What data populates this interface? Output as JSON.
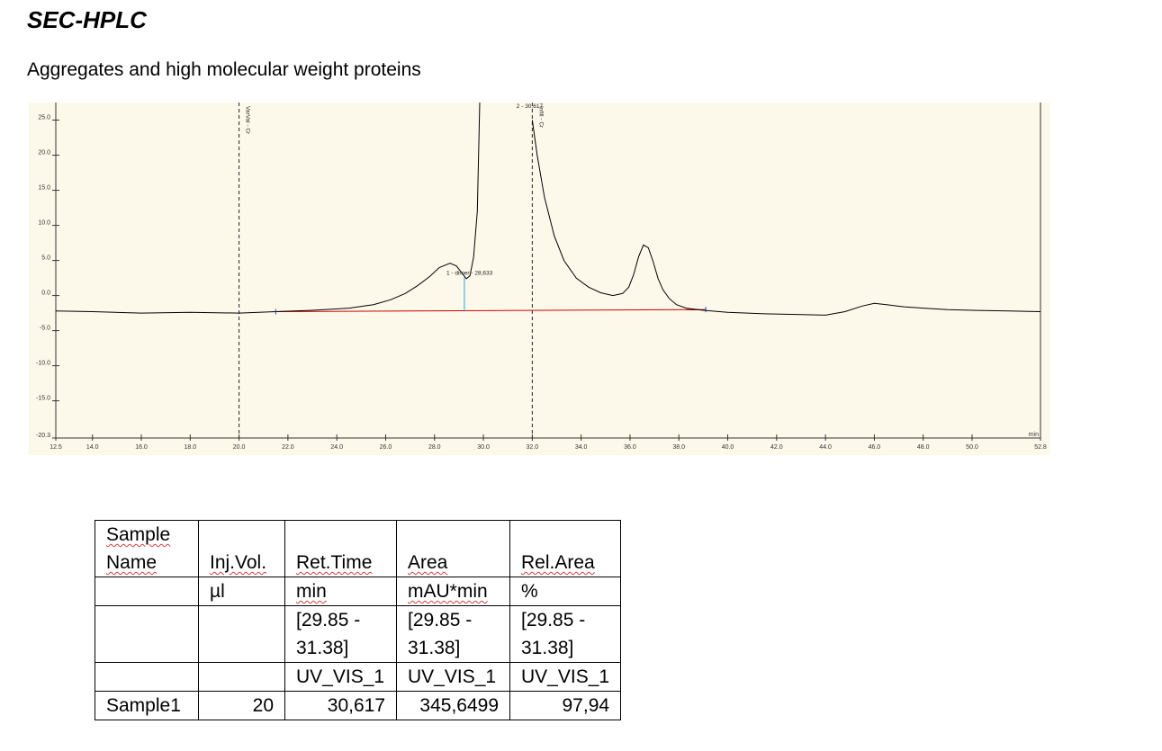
{
  "document": {
    "title": "SEC-HPLC",
    "subtitle": "Aggregates and high molecular weight proteins"
  },
  "chromatogram": {
    "x_unit": "min",
    "y_ticks": [
      "25.0",
      "20.0",
      "15.0",
      "10.0",
      "5.0",
      "0.0",
      "-5.0",
      "-10.0",
      "-15.0",
      "-20.3"
    ],
    "x_ticks": [
      "12.5",
      "14.0",
      "16.0",
      "18.0",
      "20.0",
      "22.0",
      "24.0",
      "26.0",
      "28.0",
      "30.0",
      "32.0",
      "34.0",
      "36.0",
      "38.0",
      "40.0",
      "42.0",
      "44.0",
      "46.0",
      "48.0",
      "50.0",
      "52.8"
    ],
    "markers": [
      {
        "time": 20.0,
        "label": "VarVal - Cr"
      },
      {
        "time": 32.0,
        "label": "Infill - Cr"
      }
    ],
    "peak_labels": {
      "dimer": "1 - dimer - 28,633",
      "main": "2 - 30,617"
    },
    "colors": {
      "background": "#fdf9ea",
      "trace": "#000000",
      "baseline": "#cc0000",
      "peak_marker": "#22aadd"
    }
  },
  "chart_data": {
    "type": "line",
    "title": "",
    "xlabel": "min",
    "ylabel": "",
    "xlim": [
      12.5,
      52.8
    ],
    "ylim": [
      -20.3,
      27.5
    ],
    "series": [
      {
        "x": [
          12.5,
          14.0,
          16.0,
          18.0,
          20.0,
          21.5,
          23.0,
          24.5,
          25.5,
          26.2,
          26.8,
          27.3,
          27.8,
          28.2,
          28.633,
          28.9,
          29.1,
          29.3,
          29.45,
          29.6,
          29.75,
          29.85
        ],
        "y": [
          -2.2,
          -2.3,
          -2.5,
          -2.4,
          -2.5,
          -2.3,
          -2.1,
          -1.8,
          -1.3,
          -0.6,
          0.3,
          1.4,
          2.7,
          4.0,
          4.6,
          4.2,
          3.3,
          2.4,
          2.8,
          5.5,
          12.0,
          27.5
        ]
      },
      {
        "x": [
          32.0,
          32.2,
          32.5,
          32.9,
          33.3,
          33.8,
          34.3,
          34.8,
          35.3,
          35.7,
          35.95,
          36.15,
          36.35,
          36.55,
          36.75,
          36.95,
          37.15,
          37.35,
          37.6,
          37.9,
          38.3,
          39.0,
          40.0,
          41.5,
          43.0,
          44.0,
          44.8,
          45.5,
          46.0,
          46.5,
          47.2,
          48.0,
          49.0,
          50.0,
          51.5,
          52.8
        ],
        "y": [
          25.0,
          20.0,
          14.0,
          8.5,
          5.0,
          2.5,
          1.2,
          0.4,
          0.0,
          0.3,
          1.2,
          3.0,
          5.5,
          7.2,
          6.8,
          4.8,
          2.4,
          0.8,
          -0.4,
          -1.3,
          -1.8,
          -2.1,
          -2.4,
          -2.6,
          -2.7,
          -2.8,
          -2.3,
          -1.5,
          -1.1,
          -1.3,
          -1.6,
          -1.8,
          -2.0,
          -2.1,
          -2.2,
          -2.3
        ]
      }
    ],
    "baseline": {
      "x": [
        21.5,
        39.1
      ],
      "y": [
        -2.3,
        -2.0
      ]
    },
    "peaks": [
      {
        "name": "dimer",
        "time": 28.633
      },
      {
        "name": "main",
        "time": 30.617
      }
    ]
  },
  "table": {
    "rows": [
      [
        "Sample Name",
        "Inj.Vol.",
        "Ret.Time",
        "Area",
        "Rel.Area"
      ],
      [
        "",
        "µl",
        "min",
        "mAU*min",
        "%"
      ],
      [
        "",
        "",
        "[29.85 - 31.38]",
        "[29.85 - 31.38]",
        "[29.85 - 31.38]"
      ],
      [
        "",
        "",
        "UV_VIS_1",
        "UV_VIS_1",
        "UV_VIS_1"
      ],
      [
        "Sample1",
        "20",
        "30,617",
        "345,6499",
        "97,94"
      ]
    ]
  }
}
